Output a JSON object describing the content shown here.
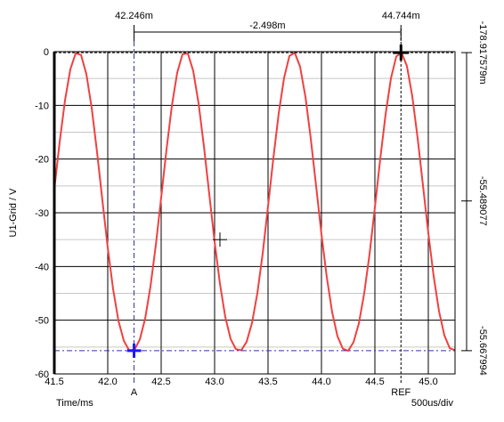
{
  "chart_data": {
    "type": "line",
    "title": "",
    "xlabel": "Time/ms",
    "ylabel": "U1-Grid / V",
    "scale_label": "500us/div",
    "xlim": [
      41.5,
      45.25
    ],
    "ylim": [
      -60,
      0
    ],
    "x_ticks": [
      "41.5",
      "42.0",
      "42.5",
      "43.0",
      "43.5",
      "44.0",
      "44.5",
      "45.0"
    ],
    "y_ticks": [
      "0",
      "-10",
      "-20",
      "-30",
      "-40",
      "-50",
      "-60"
    ],
    "grid": true,
    "colors": {
      "series": "#f04040",
      "cursor_a": "#1a1aff",
      "cursor_ref": "#000000",
      "grid_major": "#000000",
      "grid_minor": "#c8c8c8",
      "dashdot": "#3333aa"
    },
    "series": [
      {
        "color": "#f04040",
        "x": [
          41.5,
          41.55,
          41.6,
          41.65,
          41.7,
          41.75,
          41.8,
          41.85,
          41.9,
          41.95,
          42.0,
          42.05,
          42.1,
          42.15,
          42.2,
          42.25,
          42.3,
          42.35,
          42.4,
          42.45,
          42.5,
          42.55,
          42.6,
          42.65,
          42.7,
          42.75,
          42.8,
          42.85,
          42.9,
          42.95,
          43.0,
          43.05,
          43.1,
          43.15,
          43.2,
          43.25,
          43.3,
          43.35,
          43.4,
          43.45,
          43.5,
          43.55,
          43.6,
          43.65,
          43.7,
          43.75,
          43.8,
          43.85,
          43.9,
          43.95,
          44.0,
          44.05,
          44.1,
          44.15,
          44.2,
          44.25,
          44.3,
          44.35,
          44.4,
          44.45,
          44.5,
          44.55,
          44.6,
          44.65,
          44.7,
          44.75,
          44.8,
          44.85,
          44.9,
          44.95,
          45.0,
          45.05,
          45.1,
          45.15,
          45.2,
          45.25
        ],
        "y": [
          -25.6,
          -16.85,
          -9.07,
          -3.28,
          -0.3,
          -0.61,
          -4.18,
          -10.5,
          -18.7,
          -27.7,
          -36.5,
          -44.2,
          -50.1,
          -53.8,
          -55.6,
          -55.5,
          -53.6,
          -49.7,
          -43.7,
          -36.0,
          -27.2,
          -18.2,
          -10.1,
          -3.92,
          -0.45,
          -0.36,
          -3.6,
          -9.62,
          -17.6,
          -26.5,
          -35.4,
          -43.2,
          -49.4,
          -53.5,
          -55.4,
          -55.6,
          -54.0,
          -50.5,
          -45.0,
          -37.6,
          -28.8,
          -19.8,
          -11.5,
          -4.9,
          -0.8,
          -0.2,
          -2.8,
          -8.4,
          -16.2,
          -25.0,
          -34.0,
          -42.0,
          -48.5,
          -53.0,
          -55.3,
          -55.7,
          -54.1,
          -50.6,
          -45.0,
          -37.7,
          -29.0,
          -20.0,
          -11.7,
          -5.0,
          -0.9,
          -0.2,
          -2.7,
          -8.3,
          -16.1,
          -24.9,
          -33.8,
          -41.8,
          -48.3,
          -52.8,
          -55.2,
          -55.6
        ]
      }
    ],
    "cursors": {
      "a": {
        "label": "A",
        "x": 42.246,
        "y": -55.668,
        "x_readout": "42.246m"
      },
      "ref": {
        "label": "REF",
        "x": 44.744,
        "y": -0.179,
        "x_readout": "44.744m"
      },
      "delta_readout": "-2.498m",
      "probe": {
        "x": 43.05,
        "y": -35
      }
    },
    "right_scale": {
      "labels": [
        {
          "text": "-178.917579m",
          "y": -0.18
        },
        {
          "text": "-55.489077",
          "y": -27.8
        },
        {
          "text": "-55.667994",
          "y": -55.67
        }
      ]
    }
  }
}
